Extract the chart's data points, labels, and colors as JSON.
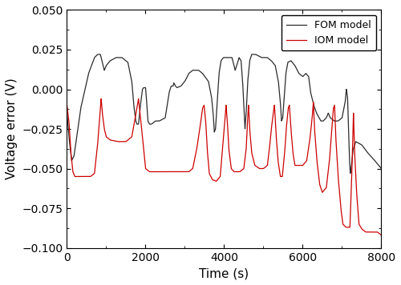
{
  "title": "",
  "xlabel": "Time (s)",
  "ylabel": "Voltage error (V)",
  "xlim": [
    0,
    8000
  ],
  "ylim": [
    -0.1,
    0.05
  ],
  "yticks": [
    -0.1,
    -0.075,
    -0.05,
    -0.025,
    0.0,
    0.025,
    0.05
  ],
  "xticks": [
    0,
    2000,
    4000,
    6000,
    8000
  ],
  "fom_color": "#2b2b2b",
  "iom_color": "#cc0000",
  "fom_label": "FOM model",
  "iom_label": "IOM model",
  "linewidth": 0.9,
  "figsize": [
    5.0,
    3.56
  ],
  "dpi": 100
}
